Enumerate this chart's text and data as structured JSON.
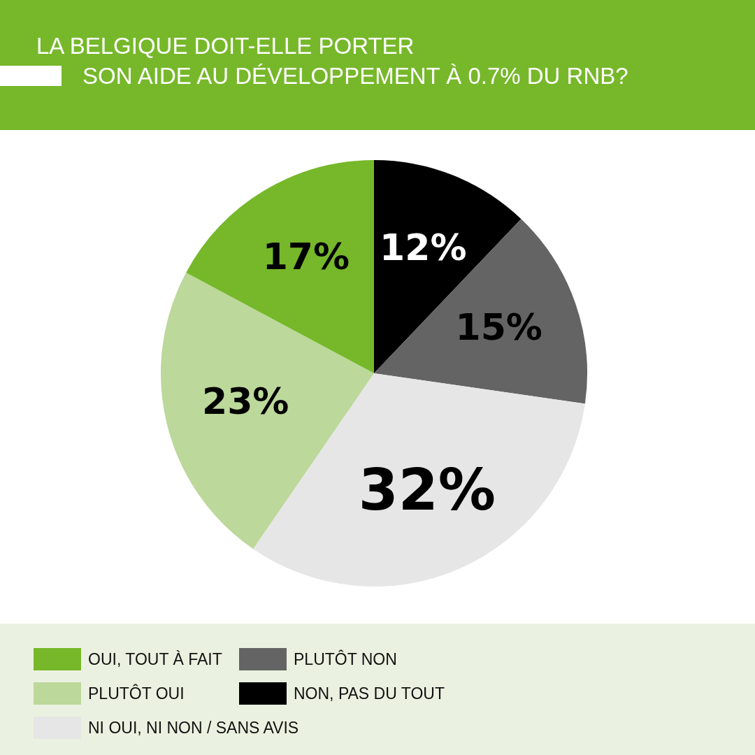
{
  "chart_data": {
    "type": "pie",
    "title": "LA BELGIQUE DOIT-ELLE PORTER\nSON AIDE AU DÉVELOPPEMENT À 0.7% DU RNB?",
    "categories": [
      "OUI, TOUT À FAIT",
      "PLUTÔT OUI",
      "NI OUI, NI NON / SANS AVIS",
      "PLUTÔT NON",
      "NON, PAS DU TOUT"
    ],
    "values": [
      17,
      23,
      32,
      15,
      12
    ],
    "colors": [
      "#76b82a",
      "#bcd89b",
      "#e6e6e6",
      "#646464",
      "#000000"
    ],
    "value_labels": [
      "17%",
      "23%",
      "32%",
      "15%",
      "12%"
    ],
    "legend": "bottom"
  }
}
